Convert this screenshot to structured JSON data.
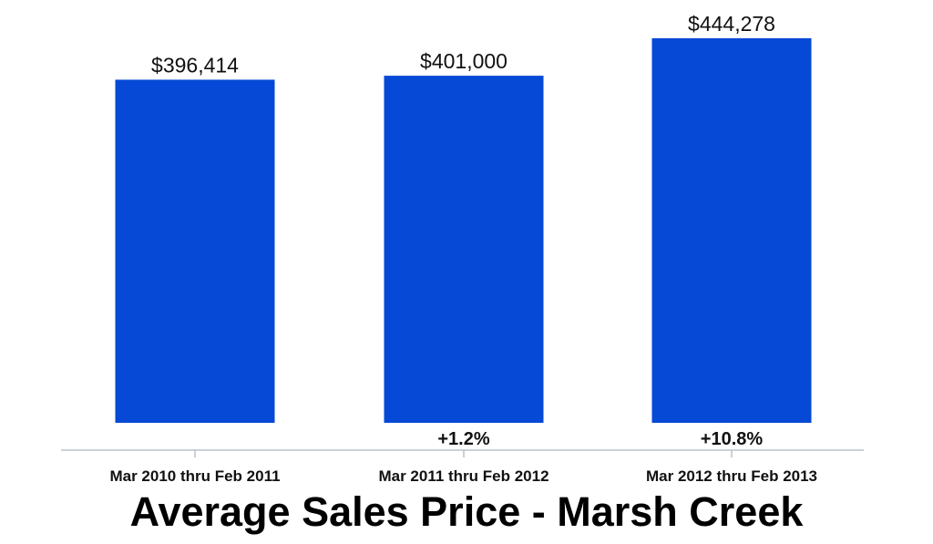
{
  "chart_data": {
    "type": "bar",
    "title": "Average Sales Price - Marsh Creek",
    "categories": [
      "Mar 2010 thru Feb 2011",
      "Mar 2011 thru Feb 2012",
      "Mar 2012 thru Feb 2013"
    ],
    "values": [
      396414,
      401000,
      444278
    ],
    "value_labels": [
      "$396,414",
      "$401,000",
      "$444,278"
    ],
    "change_labels": [
      "",
      "+1.2%",
      "+10.8%"
    ],
    "xlabel": "",
    "ylabel": "",
    "ylim": [
      0,
      444278
    ],
    "grid": false,
    "legend": "none",
    "colors": {
      "bar": "#0649D6",
      "axis": "#B8C2CC",
      "text": "#111111"
    }
  }
}
